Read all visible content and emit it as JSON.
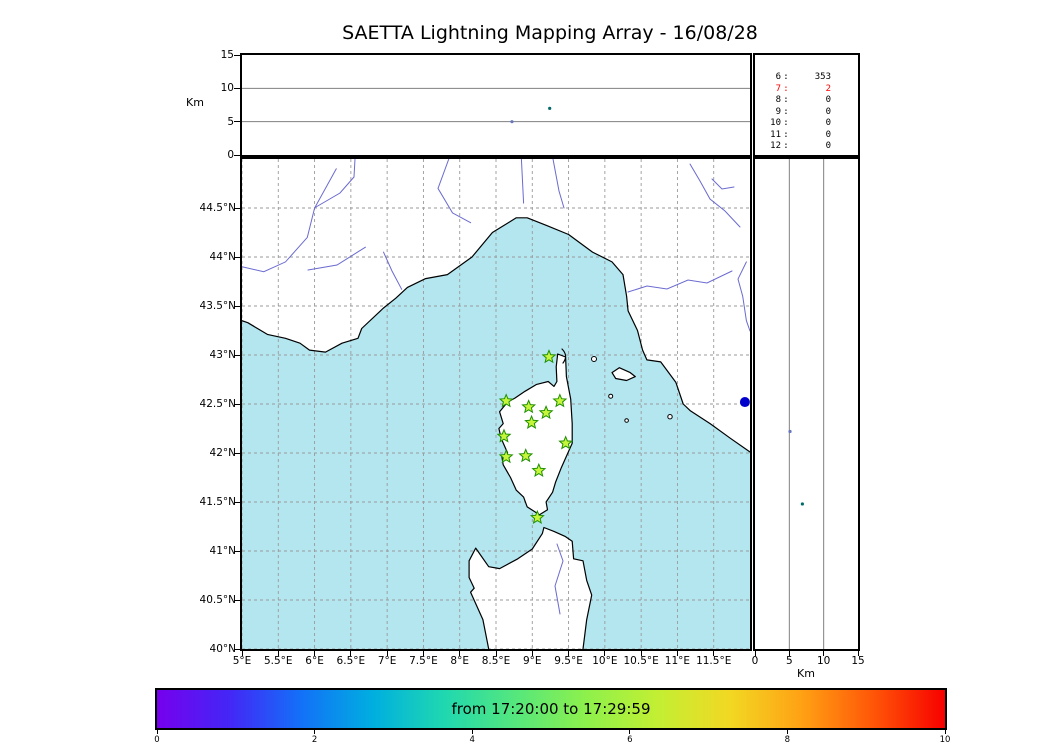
{
  "title": "SAETTA Lightning Mapping Array - 16/08/28",
  "top_panel": {
    "ylabel": "Km",
    "km_ticks": [
      {
        "label": "15",
        "km": 15
      },
      {
        "label": "10",
        "km": 10
      },
      {
        "label": "5",
        "km": 5
      },
      {
        "label": "0",
        "km": 0
      }
    ],
    "gridlines_km": [
      5,
      10
    ],
    "points": [
      {
        "lon": 9.24,
        "alt_km": 7.0,
        "color": "#006a6a"
      },
      {
        "lon": 8.72,
        "alt_km": 5.0,
        "color": "#6677bb"
      }
    ]
  },
  "stats_panel": {
    "rows": [
      {
        "stations": "6",
        "colon": ":",
        "count": "353",
        "color": "#000000"
      },
      {
        "stations": "7",
        "colon": ":",
        "count": "2",
        "color": "#ff0000"
      },
      {
        "stations": "8",
        "colon": ":",
        "count": "0",
        "color": "#000000"
      },
      {
        "stations": "9",
        "colon": ":",
        "count": "0",
        "color": "#000000"
      },
      {
        "stations": "10",
        "colon": ":",
        "count": "0",
        "color": "#000000"
      },
      {
        "stations": "11",
        "colon": ":",
        "count": "0",
        "color": "#000000"
      },
      {
        "stations": "12",
        "colon": ":",
        "count": "0",
        "color": "#000000"
      }
    ]
  },
  "map": {
    "lon_range": [
      5,
      12
    ],
    "lat_range": [
      40,
      45
    ],
    "sea_color": "#b4e6f0",
    "land_color": "#ffffff",
    "river_color": "#6a6ad0",
    "lat_ticks": [
      {
        "label": "44.5°N",
        "value": 44.5
      },
      {
        "label": "44°N",
        "value": 44
      },
      {
        "label": "43.5°N",
        "value": 43.5
      },
      {
        "label": "43°N",
        "value": 43
      },
      {
        "label": "42.5°N",
        "value": 42.5
      },
      {
        "label": "42°N",
        "value": 42
      },
      {
        "label": "41.5°N",
        "value": 41.5
      },
      {
        "label": "41°N",
        "value": 41
      },
      {
        "label": "40.5°N",
        "value": 40.5
      },
      {
        "label": "40°N",
        "value": 40
      }
    ],
    "lon_ticks": [
      {
        "label": "5°E",
        "value": 5
      },
      {
        "label": "5.5°E",
        "value": 5.5
      },
      {
        "label": "6°E",
        "value": 6
      },
      {
        "label": "6.5°E",
        "value": 6.5
      },
      {
        "label": "7°E",
        "value": 7
      },
      {
        "label": "7.5°E",
        "value": 7.5
      },
      {
        "label": "8°E",
        "value": 8
      },
      {
        "label": "8.5°E",
        "value": 8.5
      },
      {
        "label": "9°E",
        "value": 9
      },
      {
        "label": "9.5°E",
        "value": 9.5
      },
      {
        "label": "10°E",
        "value": 10
      },
      {
        "label": "10.5°E",
        "value": 10.5
      },
      {
        "label": "11°E",
        "value": 11
      },
      {
        "label": "11.5°E",
        "value": 11.5
      }
    ],
    "station_style": {
      "fill": "#c6f53c",
      "stroke": "#1e8f00"
    },
    "stations": [
      {
        "lon": 9.23,
        "lat": 42.98
      },
      {
        "lon": 8.64,
        "lat": 42.53
      },
      {
        "lon": 8.95,
        "lat": 42.47
      },
      {
        "lon": 9.38,
        "lat": 42.53
      },
      {
        "lon": 9.19,
        "lat": 42.41
      },
      {
        "lon": 8.99,
        "lat": 42.31
      },
      {
        "lon": 8.61,
        "lat": 42.17
      },
      {
        "lon": 9.46,
        "lat": 42.1
      },
      {
        "lon": 8.64,
        "lat": 41.96
      },
      {
        "lon": 8.91,
        "lat": 41.97
      },
      {
        "lon": 9.09,
        "lat": 41.82
      },
      {
        "lon": 9.07,
        "lat": 41.34
      }
    ],
    "events": [
      {
        "lon": 11.93,
        "lat": 42.52,
        "color": "#0000cd",
        "r": 5
      }
    ]
  },
  "right_panel": {
    "xlabel": "Km",
    "km_ticks": [
      {
        "label": "0",
        "km": 0
      },
      {
        "label": "5",
        "km": 5
      },
      {
        "label": "10",
        "km": 10
      },
      {
        "label": "15",
        "km": 15
      }
    ],
    "gridlines_km": [
      5,
      10
    ],
    "points": [
      {
        "lat": 42.22,
        "alt_km": 5.1,
        "color": "#6677bb"
      },
      {
        "lat": 41.48,
        "alt_km": 6.9,
        "color": "#006a6a"
      }
    ]
  },
  "colorbar": {
    "label": "from 17:20:00 to 17:29:59",
    "min": 0,
    "max": 10,
    "ticks": [
      "0",
      "2",
      "4",
      "6",
      "8",
      "10"
    ],
    "tick_values": [
      0,
      2,
      4,
      6,
      8,
      10
    ],
    "gradient": [
      "#7600ee",
      "#4426f6",
      "#1370f8",
      "#00aee0",
      "#1fd8b0",
      "#55e77d",
      "#8ef04b",
      "#c3ef33",
      "#f2d823",
      "#ffa114",
      "#ff5607",
      "#f70000"
    ]
  },
  "chart_data": [
    {
      "type": "scatter",
      "panel": "altitude_vs_longitude",
      "ylabel": "Km",
      "xlim": [
        5,
        12
      ],
      "ylim": [
        0,
        15
      ],
      "yticks": [
        0,
        5,
        10,
        15
      ],
      "gridlines_y": [
        5,
        10
      ],
      "points": [
        {
          "lon": 9.24,
          "alt_km": 7.0
        },
        {
          "lon": 8.72,
          "alt_km": 5.0
        }
      ]
    },
    {
      "type": "table",
      "panel": "sources_per_station_count",
      "columns": [
        "num_stations",
        "num_sources"
      ],
      "rows": [
        [
          6,
          353
        ],
        [
          7,
          2
        ],
        [
          8,
          0
        ],
        [
          9,
          0
        ],
        [
          10,
          0
        ],
        [
          11,
          0
        ],
        [
          12,
          0
        ]
      ],
      "highlighted_row": [
        7,
        2
      ]
    },
    {
      "type": "scatter",
      "panel": "map_lat_vs_lon",
      "title": "SAETTA Lightning Mapping Array - 16/08/28",
      "xlim": [
        5,
        12
      ],
      "ylim": [
        40,
        45
      ],
      "xticks": [
        5,
        5.5,
        6,
        6.5,
        7,
        7.5,
        8,
        8.5,
        9,
        9.5,
        10,
        10.5,
        11,
        11.5
      ],
      "yticks": [
        40,
        40.5,
        41,
        41.5,
        42,
        42.5,
        43,
        43.5,
        44,
        44.5
      ],
      "grid": true,
      "station_markers_lon_lat": [
        [
          9.23,
          42.98
        ],
        [
          8.64,
          42.53
        ],
        [
          8.95,
          42.47
        ],
        [
          9.38,
          42.53
        ],
        [
          9.19,
          42.41
        ],
        [
          8.99,
          42.31
        ],
        [
          8.61,
          42.17
        ],
        [
          9.46,
          42.1
        ],
        [
          8.64,
          41.96
        ],
        [
          8.91,
          41.97
        ],
        [
          9.09,
          41.82
        ],
        [
          9.07,
          41.34
        ]
      ],
      "event_cluster_lon_lat": [
        [
          11.93,
          42.52
        ]
      ]
    },
    {
      "type": "scatter",
      "panel": "altitude_vs_latitude",
      "xlabel": "Km",
      "xlim": [
        0,
        15
      ],
      "xticks": [
        0,
        5,
        10,
        15
      ],
      "ylim": [
        40,
        45
      ],
      "gridlines_x": [
        5,
        10
      ],
      "points": [
        {
          "alt_km": 5.1,
          "lat": 42.22
        },
        {
          "alt_km": 6.9,
          "lat": 41.48
        }
      ]
    },
    {
      "type": "colorbar",
      "label": "from 17:20:00 to 17:29:59",
      "range": [
        0,
        10
      ],
      "ticks": [
        0,
        2,
        4,
        6,
        8,
        10
      ],
      "legend_position": "bottom"
    }
  ]
}
